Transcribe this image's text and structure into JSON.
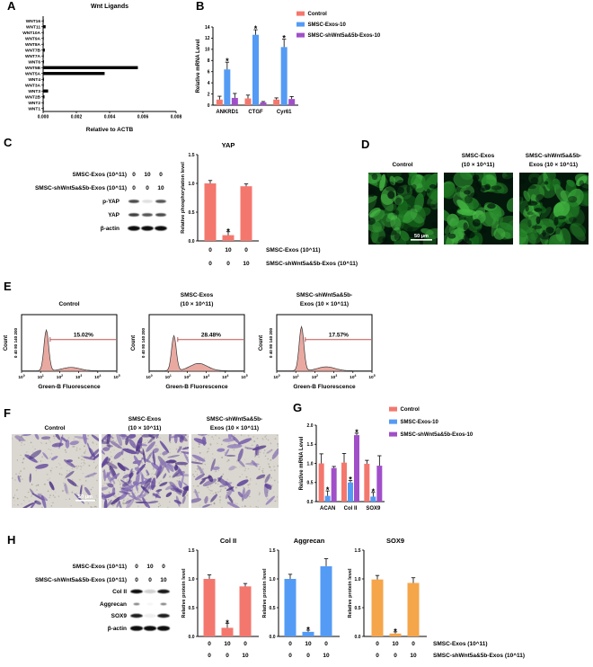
{
  "panel_letters": {
    "A": "A",
    "B": "B",
    "C": "C",
    "D": "D",
    "E": "E",
    "F": "F",
    "G": "G",
    "H": "H"
  },
  "colors": {
    "control_salmon": "#F4776E",
    "exos_blue": "#549BF5",
    "shwnt_purple": "#A14FC9",
    "sox9_orange": "#F5A54A",
    "bar_black": "#000000",
    "flow_fill": "#E9A9A1",
    "flow_gate": "#C0504D",
    "micro_green_bg": "#04170B",
    "transwell_bg": "#DAD7D0",
    "transwell_cell": "#5D4198"
  },
  "legend_B": {
    "items": [
      {
        "label": "Control",
        "color": "#F4776E"
      },
      {
        "label": "SMSC-Exos-10",
        "color": "#549BF5"
      },
      {
        "label": "SMSC-shWnt5a&5b-Exos-10",
        "color": "#A14FC9"
      }
    ]
  },
  "legend_G": {
    "items": [
      {
        "label": "Control",
        "color": "#F4776E"
      },
      {
        "label": "SMSC-Exos-10",
        "color": "#549BF5"
      },
      {
        "label": "SMSC-shWnt5a&5b-Exos-10",
        "color": "#A14FC9"
      }
    ]
  },
  "chart_data": [
    {
      "id": "wnt-ligands",
      "type": "bar",
      "orientation": "horizontal",
      "title": "Wnt Ligands",
      "xlabel": "Relative to ACTB",
      "categories": [
        "WNT16",
        "WNT11",
        "WNT10A",
        "WNT9A",
        "WNT8A",
        "WNT7B",
        "WNT7A",
        "WNT6",
        "WNT5B",
        "WNT5A",
        "WNT4",
        "WNT3A",
        "WNT3",
        "WNT2B",
        "WNT2",
        "WNT1"
      ],
      "values": [
        2e-05,
        0.00015,
        2e-05,
        3e-05,
        2e-05,
        0.0001,
        2e-05,
        5e-05,
        0.0057,
        0.0037,
        5e-05,
        2e-05,
        0.0003,
        8e-05,
        2e-05,
        2e-05
      ],
      "xlim": [
        0,
        0.008
      ],
      "xticks": [
        "0.000",
        "0.002",
        "0.004",
        "0.006",
        "0.008"
      ],
      "color": "#000000"
    },
    {
      "id": "yap-target-mrna",
      "type": "bar",
      "ylabel": "Relative mRNA Level",
      "categories": [
        "ANKRD1",
        "CTGF",
        "Cyr61"
      ],
      "ylim": [
        0,
        14
      ],
      "yticks": [
        "0",
        "2",
        "4",
        "6",
        "8",
        "10",
        "12",
        "14"
      ],
      "series": [
        {
          "name": "Control",
          "color": "#F4776E",
          "values": [
            1.0,
            1.2,
            1.0
          ],
          "errors": [
            0.6,
            0.6,
            0.3
          ],
          "sig": [
            false,
            false,
            false
          ]
        },
        {
          "name": "SMSC-Exos-10",
          "color": "#549BF5",
          "values": [
            6.4,
            12.6,
            10.4
          ],
          "errors": [
            1.3,
            0.9,
            1.4
          ],
          "sig": [
            true,
            true,
            true
          ]
        },
        {
          "name": "SMSC-shWnt5a&5b-Exos-10",
          "color": "#A14FC9",
          "values": [
            1.3,
            0.5,
            1.1
          ],
          "errors": [
            0.8,
            0.15,
            0.45
          ],
          "sig": [
            false,
            false,
            false
          ]
        }
      ]
    },
    {
      "id": "yap-phosphorylation",
      "type": "bar",
      "title": "YAP",
      "ylabel": "Relative phosphorylation level",
      "ylim": [
        0,
        1.5
      ],
      "yticks": [
        "0.0",
        "0.5",
        "1.0",
        "1.5"
      ],
      "values": [
        1.0,
        0.1,
        0.95
      ],
      "errors": [
        0.05,
        0.06,
        0.04
      ],
      "sig": [
        false,
        true,
        false
      ],
      "color": "#F4776E",
      "dose_rows": [
        {
          "values": [
            "0",
            "10",
            "0"
          ],
          "label": "SMSC-Exos (10^11)"
        },
        {
          "values": [
            "0",
            "0",
            "10"
          ],
          "label": "SMSC-shWnt5a&5b-Exos (10^11)"
        }
      ]
    },
    {
      "id": "flow-control",
      "type": "histogram",
      "title_lines": [
        "Control"
      ],
      "gate_label": "15.02%",
      "xlabel": "Green-B Fluorescence",
      "ylabel": "Count",
      "ytick_text": "0 40 80 140 200",
      "x_exponents": [
        0,
        1,
        2,
        3,
        4,
        5
      ],
      "peak": 0.72,
      "bump": 0.06
    },
    {
      "id": "flow-smsc-exos",
      "type": "histogram",
      "title_lines": [
        "SMSC-Exos",
        "(10 × 10^11)"
      ],
      "gate_label": "28.48%",
      "xlabel": "Green-B Fluorescence",
      "ylabel": "Count",
      "ytick_text": "0 40 80 140 200",
      "x_exponents": [
        0,
        1,
        2,
        3,
        4,
        5
      ],
      "peak": 0.62,
      "bump": 0.13
    },
    {
      "id": "flow-shwnt-exos",
      "type": "histogram",
      "title_lines": [
        "SMSC-shWnt5a&5b-",
        "Exos (10 × 10^11)"
      ],
      "gate_label": "17.57%",
      "xlabel": "Green-B Fluorescence",
      "ylabel": "Count",
      "ytick_text": "0 40 80 140 200",
      "x_exponents": [
        0,
        1,
        2,
        3,
        4,
        5
      ],
      "peak": 0.78,
      "bump": 0.07
    },
    {
      "id": "chondro-mrna",
      "type": "bar",
      "ylabel": "Relative mRNA Level",
      "categories": [
        "ACAN",
        "Col II",
        "SOX9"
      ],
      "ylim": [
        0,
        2.0
      ],
      "yticks": [
        "0.0",
        "0.5",
        "1.0",
        "1.5",
        "2.0"
      ],
      "series": [
        {
          "name": "Control",
          "color": "#F4776E",
          "values": [
            1.0,
            1.02,
            0.99
          ],
          "errors": [
            0.25,
            0.24,
            0.09
          ],
          "sig": [
            false,
            false,
            false
          ]
        },
        {
          "name": "SMSC-Exos-10",
          "color": "#549BF5",
          "values": [
            0.15,
            0.5,
            0.13
          ],
          "errors": [
            0.13,
            0.05,
            0.11
          ],
          "sig": [
            true,
            true,
            true
          ]
        },
        {
          "name": "SMSC-shWnt5a&5b-Exos-10",
          "color": "#A14FC9",
          "values": [
            0.88,
            1.74,
            0.94
          ],
          "errors": [
            0.04,
            0.05,
            0.26
          ],
          "sig": [
            false,
            true,
            false
          ]
        }
      ]
    },
    {
      "id": "colii-protein",
      "type": "bar",
      "title": "Col II",
      "ylabel": "Relative protein level",
      "ylim": [
        0,
        1.5
      ],
      "yticks": [
        "0.0",
        "0.5",
        "1.0",
        "1.5"
      ],
      "values": [
        1.0,
        0.15,
        0.87
      ],
      "errors": [
        0.07,
        0.08,
        0.05
      ],
      "sig": [
        false,
        true,
        false
      ],
      "color": "#F4776E",
      "dose_rows": [
        {
          "values": [
            "0",
            "10",
            "0"
          ]
        },
        {
          "values": [
            "0",
            "0",
            "10"
          ]
        }
      ]
    },
    {
      "id": "aggrecan-protein",
      "type": "bar",
      "title": "Aggrecan",
      "ylabel": "Relative protein level",
      "ylim": [
        0,
        1.5
      ],
      "yticks": [
        "0.0",
        "0.5",
        "1.0",
        "1.5"
      ],
      "values": [
        1.0,
        0.08,
        1.22
      ],
      "errors": [
        0.08,
        0.03,
        0.13
      ],
      "sig": [
        false,
        true,
        false
      ],
      "color": "#549BF5",
      "dose_rows": [
        {
          "values": [
            "0",
            "10",
            "0"
          ]
        },
        {
          "values": [
            "0",
            "0",
            "10"
          ]
        }
      ]
    },
    {
      "id": "sox9-protein",
      "type": "bar",
      "title": "SOX9",
      "ylabel": "Relative protein level",
      "ylim": [
        0,
        1.5
      ],
      "yticks": [
        "0.0",
        "0.5",
        "1.0",
        "1.5"
      ],
      "values": [
        0.99,
        0.05,
        0.93
      ],
      "errors": [
        0.07,
        0.03,
        0.09
      ],
      "sig": [
        false,
        true,
        false
      ],
      "color": "#F5A54A",
      "dose_rows": [
        {
          "values": [
            "0",
            "10",
            "0"
          ],
          "label": "SMSC-Exos (10^11)"
        },
        {
          "values": [
            "0",
            "0",
            "10"
          ],
          "label": "SMSC-shWnt5a&5b-Exos (10^11)"
        }
      ]
    }
  ],
  "blot_C": {
    "header_rows": [
      {
        "label": "SMSC-Exos (10^11)",
        "doses": [
          "0",
          "10",
          "0"
        ]
      },
      {
        "label": "SMSC-shWnt5a&5b-Exos (10^11)",
        "doses": [
          "0",
          "0",
          "10"
        ]
      }
    ],
    "rows": [
      {
        "label": "p-YAP",
        "intensity": [
          0.75,
          0.12,
          0.7
        ]
      },
      {
        "label": "YAP",
        "intensity": [
          0.8,
          0.7,
          0.75
        ]
      },
      {
        "label": "β-actin",
        "intensity": [
          1,
          1,
          1
        ]
      }
    ]
  },
  "blot_H": {
    "header_rows": [
      {
        "label": "SMSC-Exos (10^11)",
        "doses": [
          "0",
          "10",
          "0"
        ]
      },
      {
        "label": "SMSC-shWnt5a&5b-Exos (10^11)",
        "doses": [
          "0",
          "0",
          "10"
        ]
      }
    ],
    "rows": [
      {
        "label": "Col II",
        "intensity": [
          1,
          0.18,
          0.95
        ]
      },
      {
        "label": "Aggrecan",
        "intensity": [
          0.5,
          0.04,
          0.5
        ]
      },
      {
        "label": "SOX9",
        "intensity": [
          0.92,
          0.06,
          0.92
        ]
      },
      {
        "label": "β-actin",
        "intensity": [
          1,
          1,
          1
        ]
      }
    ]
  },
  "panel_D": {
    "titles": [
      [
        "Control"
      ],
      [
        "SMSC-Exos",
        "(10 × 10^11)"
      ],
      [
        "SMSC-shWnt5a&5b-",
        "Exos (10 × 10^11)"
      ]
    ],
    "scale_bar": "50 μm"
  },
  "panel_E": {
    "percentages": [
      "15.02%",
      "28.48%",
      "17.57%"
    ]
  },
  "panel_F": {
    "titles": [
      [
        "Control"
      ],
      [
        "SMSC-Exos",
        "(10 × 10^11)"
      ],
      [
        "SMSC-shWnt5a&5b-",
        "Exos (10 × 10^11)"
      ]
    ],
    "scale_bar": "50 μm"
  }
}
